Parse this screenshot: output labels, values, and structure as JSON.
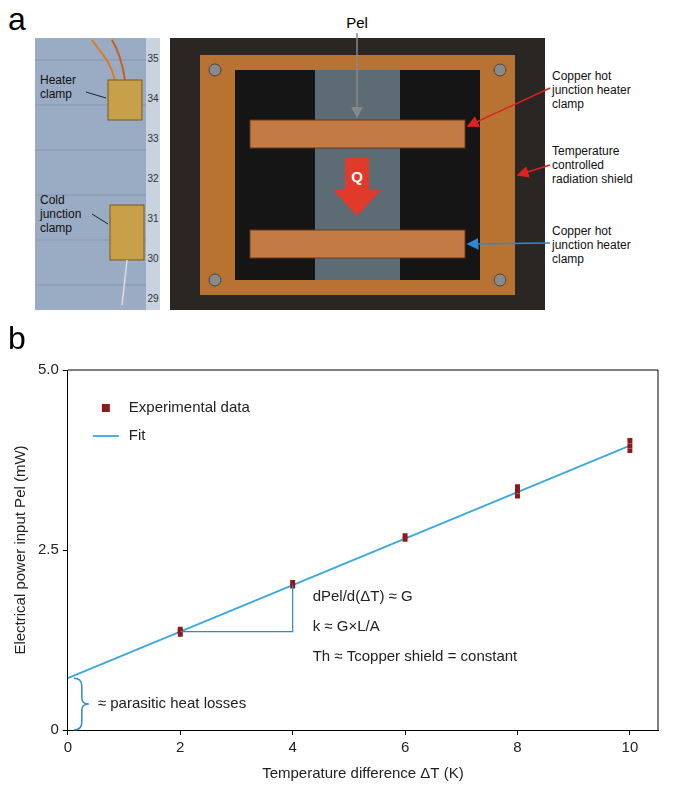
{
  "panel_a": {
    "label": "a",
    "left_photo": {
      "labels": [
        "Heater clamp",
        "Cold junction clamp"
      ],
      "ruler": [
        35,
        34,
        33,
        32,
        31,
        30,
        29
      ]
    },
    "right_photo": {
      "top_label": "Pel",
      "flow_label": "Q",
      "side_labels": [
        "Copper hot junction heater clamp",
        "Temperature controlled radiation shield",
        "Copper hot junction heater clamp"
      ]
    }
  },
  "chart_data": {
    "panel_label": "b",
    "type": "scatter",
    "x_label": "Temperature difference ΔT (K)",
    "y_label": "Electrical power input Pel (mW)",
    "series": [
      {
        "name": "Experimental data",
        "color": "#8b1a1a",
        "marker": "square",
        "x": [
          2,
          2,
          2,
          4,
          4,
          6,
          6,
          8,
          8,
          8,
          10,
          10,
          10
        ],
        "values": [
          1.33,
          1.37,
          1.4,
          2.0,
          2.05,
          2.65,
          2.7,
          3.25,
          3.32,
          3.38,
          3.88,
          3.95,
          4.02
        ]
      },
      {
        "name": "Fit",
        "color": "#3aa9df",
        "type": "line",
        "marker": "none",
        "line_style": "solid",
        "x": [
          0,
          10
        ],
        "values": [
          0.72,
          3.95
        ]
      }
    ],
    "xlim": [
      0,
      10.5
    ],
    "xticks": [
      0,
      2,
      4,
      6,
      8,
      10
    ],
    "ylim": [
      0,
      5
    ],
    "yticks": [
      0,
      2.5,
      {
        "value": 5,
        "label": "5.0"
      }
    ],
    "grid": false,
    "legend": "upper left",
    "annotations": [
      "dPel/d(ΔT) ≈ G",
      "k ≈ G×L/A",
      "Th ≈ Tcopper shield = constant",
      "≈ parasitic heat losses"
    ]
  }
}
